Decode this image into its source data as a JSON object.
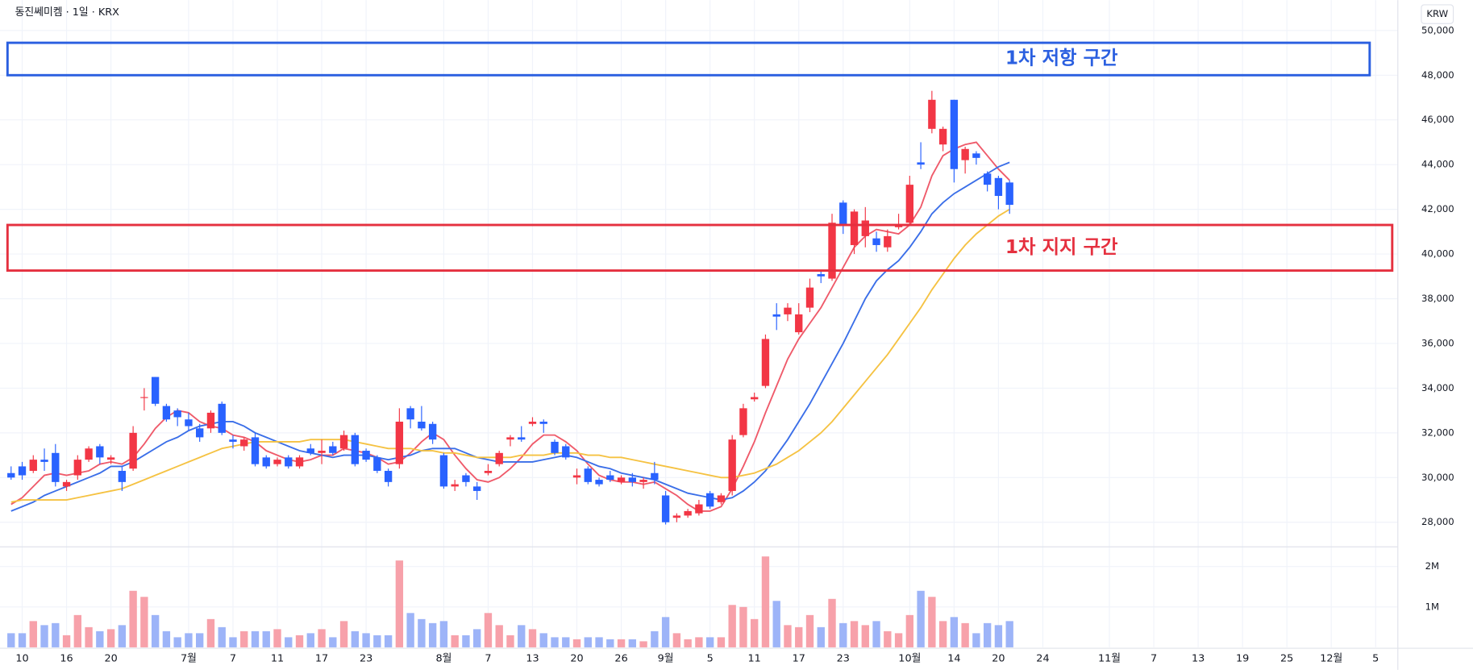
{
  "chart_data": {
    "type": "candlestick",
    "title": "동진쎄미켐 · 1일 · KRX",
    "currency": "KRW",
    "up_color": "#f23645",
    "down_color": "#2962ff",
    "volume_up_color": "#f7a1aa",
    "volume_down_color": "#9db4f8",
    "grid": true,
    "xlim": [
      -1,
      125
    ],
    "xticks": [
      {
        "value": 1,
        "label": "10"
      },
      {
        "value": 5,
        "label": "16"
      },
      {
        "value": 9,
        "label": "20"
      },
      {
        "value": 16,
        "label": "7월"
      },
      {
        "value": 20,
        "label": "7"
      },
      {
        "value": 24,
        "label": "11"
      },
      {
        "value": 28,
        "label": "17"
      },
      {
        "value": 32,
        "label": "23"
      },
      {
        "value": 39,
        "label": "8월"
      },
      {
        "value": 43,
        "label": "7"
      },
      {
        "value": 47,
        "label": "13"
      },
      {
        "value": 51,
        "label": "20"
      },
      {
        "value": 55,
        "label": "26"
      },
      {
        "value": 59,
        "label": "9월"
      },
      {
        "value": 63,
        "label": "5"
      },
      {
        "value": 67,
        "label": "11"
      },
      {
        "value": 71,
        "label": "17"
      },
      {
        "value": 75,
        "label": "23"
      },
      {
        "value": 81,
        "label": "10월"
      },
      {
        "value": 85,
        "label": "14"
      },
      {
        "value": 89,
        "label": "20"
      },
      {
        "value": 93,
        "label": "24"
      },
      {
        "value": 99,
        "label": "11월"
      },
      {
        "value": 103,
        "label": "7"
      },
      {
        "value": 107,
        "label": "13"
      },
      {
        "value": 111,
        "label": "19"
      },
      {
        "value": 115,
        "label": "25"
      },
      {
        "value": 119,
        "label": "12월"
      },
      {
        "value": 123,
        "label": "5"
      }
    ],
    "ylim": [
      26900,
      51150
    ],
    "yticks": [
      {
        "value": 28000,
        "label": "28,000"
      },
      {
        "value": 30000,
        "label": "30,000"
      },
      {
        "value": 32000,
        "label": "32,000"
      },
      {
        "value": 34000,
        "label": "34,000"
      },
      {
        "value": 36000,
        "label": "36,000"
      },
      {
        "value": 38000,
        "label": "38,000"
      },
      {
        "value": 40000,
        "label": "40,000"
      },
      {
        "value": 42000,
        "label": "42,000"
      },
      {
        "value": 44000,
        "label": "44,000"
      },
      {
        "value": 46000,
        "label": "46,000"
      },
      {
        "value": 48000,
        "label": "48,000"
      },
      {
        "value": 50000,
        "label": "50,000"
      }
    ],
    "open": [
      30200,
      30500,
      30300,
      30800,
      31100,
      29600,
      30100,
      30800,
      31400,
      30800,
      30300,
      30400,
      33600,
      34500,
      33200,
      33000,
      32600,
      32200,
      32200,
      33300,
      31700,
      31400,
      31800,
      30900,
      30600,
      30900,
      30500,
      31300,
      31100,
      31400,
      31300,
      31900,
      31200,
      30900,
      30300,
      30600,
      33100,
      32500,
      32400,
      31000,
      29600,
      30100,
      29600,
      30200,
      30600,
      31700,
      31800,
      32400,
      32500,
      31600,
      31400,
      30000,
      30400,
      29900,
      30100,
      29800,
      30000,
      29800,
      30200,
      29200,
      28200,
      28300,
      28400,
      29300,
      28900,
      29400,
      31900,
      33500,
      34100,
      37300,
      37300,
      36500,
      37600,
      39100,
      38900,
      42300,
      40400,
      40800,
      40700,
      40300,
      41200,
      41400,
      44100,
      45600,
      44900,
      46900,
      44200,
      44500,
      43600,
      43400,
      43200
    ],
    "high": [
      30500,
      30700,
      31000,
      31300,
      31500,
      29900,
      31000,
      31400,
      31500,
      31000,
      30500,
      32300,
      34000,
      34500,
      33300,
      33100,
      32900,
      32400,
      33000,
      33400,
      31900,
      31800,
      32000,
      31000,
      30900,
      31000,
      31000,
      31500,
      31700,
      31600,
      32100,
      32000,
      31300,
      31000,
      30400,
      33100,
      33200,
      33200,
      32500,
      31100,
      29900,
      30200,
      29800,
      30600,
      31200,
      31900,
      32300,
      32700,
      32600,
      31700,
      31500,
      30400,
      30500,
      30000,
      30300,
      30100,
      30200,
      30000,
      30700,
      29400,
      28400,
      28600,
      29000,
      29400,
      29300,
      31900,
      33300,
      33800,
      36400,
      37800,
      37800,
      37800,
      38900,
      39300,
      41800,
      42400,
      42000,
      42100,
      41000,
      41100,
      41800,
      43500,
      45000,
      47300,
      45700,
      46900,
      44800,
      44600,
      43700,
      43500,
      43300
    ],
    "low": [
      29900,
      29900,
      30200,
      30300,
      29600,
      29400,
      29900,
      30700,
      30600,
      30600,
      29400,
      30300,
      33000,
      33200,
      32500,
      32300,
      32100,
      31600,
      32000,
      31900,
      31300,
      31200,
      30500,
      30400,
      30500,
      30400,
      30400,
      31000,
      30600,
      31000,
      31200,
      30500,
      30700,
      30200,
      29600,
      30400,
      32200,
      32100,
      31500,
      29500,
      29400,
      29600,
      29000,
      30100,
      30500,
      31400,
      31600,
      32300,
      32000,
      31000,
      30800,
      29700,
      29700,
      29600,
      29800,
      29700,
      29600,
      29500,
      29700,
      27900,
      28000,
      28200,
      28300,
      28600,
      28800,
      29200,
      31800,
      33400,
      34000,
      36600,
      37000,
      36400,
      37400,
      38700,
      38800,
      40900,
      40000,
      40300,
      40100,
      40100,
      41100,
      41300,
      43800,
      45400,
      44600,
      43200,
      43600,
      44000,
      42800,
      42000,
      41800
    ],
    "close": [
      30000,
      30100,
      30800,
      30700,
      29800,
      29800,
      30800,
      31300,
      30900,
      30900,
      29800,
      32000,
      33600,
      33300,
      32600,
      32700,
      32300,
      31800,
      32900,
      32000,
      31600,
      31700,
      30600,
      30500,
      30800,
      30500,
      30900,
      31100,
      31200,
      31100,
      31900,
      30600,
      30800,
      30300,
      29800,
      32500,
      32600,
      32200,
      31700,
      29600,
      29700,
      29800,
      29400,
      30300,
      31100,
      31800,
      31700,
      32500,
      32400,
      31100,
      30900,
      30100,
      29800,
      29700,
      29900,
      30000,
      29800,
      29900,
      29900,
      28000,
      28300,
      28500,
      28800,
      28700,
      29200,
      31700,
      33100,
      33600,
      36200,
      37200,
      37600,
      37300,
      38500,
      39000,
      41400,
      41300,
      41900,
      41500,
      40400,
      40800,
      41300,
      43100,
      44000,
      46900,
      45600,
      43800,
      44700,
      44300,
      43100,
      42600,
      42200
    ],
    "moving_averages": [
      {
        "color": "#ef5a6a",
        "values": [
          28800,
          29100,
          29600,
          30100,
          30200,
          30100,
          30200,
          30300,
          30600,
          30700,
          30600,
          30900,
          31500,
          32200,
          32700,
          33000,
          32900,
          32500,
          32300,
          32200,
          31900,
          31800,
          31600,
          31200,
          31000,
          30800,
          30700,
          30800,
          31000,
          31000,
          31300,
          31200,
          31100,
          30900,
          30600,
          30700,
          31100,
          31600,
          32000,
          31700,
          31000,
          30400,
          29900,
          29800,
          30000,
          30400,
          30900,
          31500,
          31900,
          31900,
          31600,
          31200,
          30600,
          30100,
          29900,
          29800,
          29800,
          29700,
          29800,
          29500,
          29200,
          28800,
          28500,
          28500,
          28700,
          29500,
          30500,
          31600,
          32900,
          34100,
          35300,
          36200,
          36900,
          37600,
          38500,
          39400,
          40300,
          40800,
          41100,
          41000,
          40900,
          41300,
          42100,
          43500,
          44400,
          44700,
          44900,
          45000,
          44400,
          43800,
          43300
        ]
      },
      {
        "color": "#3a6ee8",
        "values": [
          28500,
          28700,
          28900,
          29200,
          29400,
          29600,
          29800,
          30000,
          30200,
          30500,
          30500,
          30700,
          31000,
          31300,
          31600,
          31800,
          32100,
          32300,
          32400,
          32500,
          32500,
          32300,
          32000,
          31800,
          31600,
          31400,
          31200,
          31100,
          31000,
          30900,
          31000,
          31000,
          31000,
          30900,
          30800,
          30900,
          31000,
          31200,
          31300,
          31300,
          31300,
          31100,
          30900,
          30800,
          30700,
          30700,
          30700,
          30700,
          30800,
          30900,
          31000,
          30900,
          30700,
          30500,
          30400,
          30200,
          30100,
          30000,
          29900,
          29700,
          29500,
          29300,
          29200,
          29100,
          29000,
          29100,
          29400,
          29800,
          30300,
          31000,
          31700,
          32500,
          33300,
          34200,
          35100,
          36000,
          37000,
          38000,
          38800,
          39300,
          39700,
          40300,
          41000,
          41800,
          42300,
          42700,
          43000,
          43300,
          43600,
          43900,
          44100
        ]
      },
      {
        "color": "#f5c242",
        "values": [
          28900,
          29000,
          29000,
          29000,
          29000,
          29000,
          29100,
          29200,
          29300,
          29400,
          29500,
          29700,
          29900,
          30100,
          30300,
          30500,
          30700,
          30900,
          31100,
          31300,
          31400,
          31500,
          31600,
          31600,
          31600,
          31600,
          31600,
          31700,
          31700,
          31700,
          31700,
          31600,
          31500,
          31400,
          31300,
          31300,
          31300,
          31200,
          31200,
          31100,
          31100,
          31000,
          30900,
          30900,
          30900,
          30900,
          31000,
          31000,
          31000,
          31100,
          31100,
          31100,
          31000,
          31000,
          30900,
          30900,
          30800,
          30700,
          30600,
          30500,
          30400,
          30300,
          30200,
          30100,
          30000,
          30000,
          30100,
          30200,
          30400,
          30600,
          30900,
          31200,
          31600,
          32000,
          32500,
          33100,
          33700,
          34300,
          34900,
          35500,
          36200,
          36900,
          37600,
          38400,
          39100,
          39800,
          40400,
          40900,
          41300,
          41700,
          42000
        ]
      }
    ],
    "volume": {
      "ylim": [
        0,
        2465000
      ],
      "yticks": [
        {
          "value": 1000000,
          "label": "1M"
        },
        {
          "value": 2000000,
          "label": "2M"
        }
      ],
      "values": [
        350000,
        350000,
        650000,
        550000,
        600000,
        300000,
        800000,
        500000,
        400000,
        450000,
        550000,
        1400000,
        1250000,
        800000,
        400000,
        250000,
        350000,
        350000,
        700000,
        500000,
        250000,
        400000,
        400000,
        400000,
        450000,
        250000,
        300000,
        350000,
        450000,
        250000,
        650000,
        400000,
        350000,
        300000,
        300000,
        2150000,
        850000,
        700000,
        600000,
        650000,
        300000,
        300000,
        450000,
        850000,
        550000,
        300000,
        550000,
        450000,
        350000,
        250000,
        250000,
        200000,
        250000,
        250000,
        200000,
        200000,
        200000,
        150000,
        400000,
        750000,
        350000,
        200000,
        250000,
        250000,
        250000,
        1050000,
        1000000,
        700000,
        2250000,
        1150000,
        550000,
        500000,
        800000,
        500000,
        1200000,
        600000,
        650000,
        550000,
        650000,
        400000,
        350000,
        800000,
        1400000,
        1250000,
        650000,
        750000,
        600000,
        350000,
        600000,
        550000,
        650000
      ]
    },
    "zones": [
      {
        "label": "1차 저항 구간",
        "low": 48000,
        "high": 49450,
        "color": "#2a5fe0"
      },
      {
        "label": "1차 지지 구간",
        "low": 39260,
        "high": 41300,
        "color": "#e5303f"
      }
    ]
  }
}
